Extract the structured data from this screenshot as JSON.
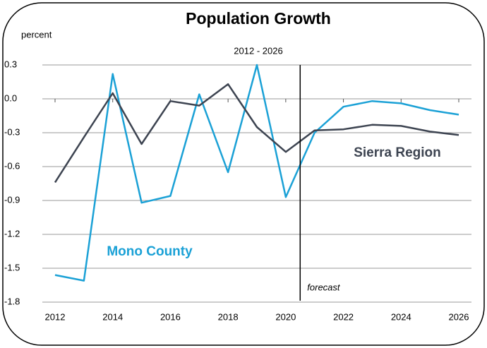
{
  "chart_data": {
    "type": "line",
    "title": "Population Growth",
    "subtitle": "2012 - 2026",
    "y_label": "percent",
    "x": [
      2012,
      2013,
      2014,
      2015,
      2016,
      2017,
      2018,
      2019,
      2020,
      2021,
      2022,
      2023,
      2024,
      2025,
      2026
    ],
    "series": [
      {
        "name": "Mono County",
        "color": "#1ba1d6",
        "values": [
          -1.56,
          -1.61,
          0.22,
          -0.92,
          -0.86,
          0.04,
          -0.65,
          0.3,
          -0.87,
          -0.3,
          -0.07,
          -0.02,
          -0.04,
          -0.1,
          -0.14
        ]
      },
      {
        "name": "Sierra Region",
        "color": "#3d4451",
        "values": [
          -0.74,
          -0.34,
          0.05,
          -0.4,
          -0.02,
          -0.06,
          0.13,
          -0.25,
          -0.47,
          -0.28,
          -0.27,
          -0.23,
          -0.24,
          -0.29,
          -0.32
        ]
      }
    ],
    "xlim": [
      2012,
      2026
    ],
    "xticks": [
      2012,
      2014,
      2016,
      2018,
      2020,
      2022,
      2024,
      2026
    ],
    "ylim": [
      -1.8,
      0.3
    ],
    "yticks": [
      0.3,
      {
        "value": 0,
        "label": "0.0"
      },
      -0.3,
      -0.6,
      -0.9,
      -1.2,
      -1.5,
      -1.8
    ],
    "grid": true,
    "annotation": {
      "text": "forecast",
      "x": 2020.5
    }
  }
}
